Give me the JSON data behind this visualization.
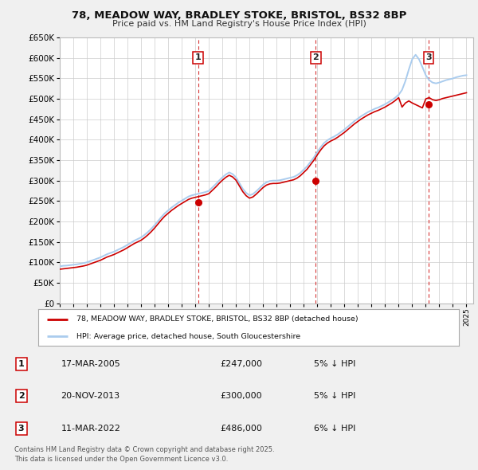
{
  "title_line1": "78, MEADOW WAY, BRADLEY STOKE, BRISTOL, BS32 8BP",
  "title_line2": "Price paid vs. HM Land Registry's House Price Index (HPI)",
  "background_color": "#f0f0f0",
  "plot_bg_color": "#ffffff",
  "grid_color": "#cccccc",
  "hpi_color": "#aaccee",
  "price_color": "#cc0000",
  "legend_label_price": "78, MEADOW WAY, BRADLEY STOKE, BRISTOL, BS32 8BP (detached house)",
  "legend_label_hpi": "HPI: Average price, detached house, South Gloucestershire",
  "ylim": [
    0,
    650000
  ],
  "ytick_step": 50000,
  "transactions": [
    {
      "num": 1,
      "date": "17-MAR-2005",
      "price": 247000,
      "pct": "5%",
      "dir": "↓",
      "x_val": 2005.21
    },
    {
      "num": 2,
      "date": "20-NOV-2013",
      "price": 300000,
      "pct": "5%",
      "dir": "↓",
      "x_val": 2013.89
    },
    {
      "num": 3,
      "date": "11-MAR-2022",
      "price": 486000,
      "pct": "6%",
      "dir": "↓",
      "x_val": 2022.21
    }
  ],
  "hpi_x": [
    1995.0,
    1995.25,
    1995.5,
    1995.75,
    1996.0,
    1996.25,
    1996.5,
    1996.75,
    1997.0,
    1997.25,
    1997.5,
    1997.75,
    1998.0,
    1998.25,
    1998.5,
    1998.75,
    1999.0,
    1999.25,
    1999.5,
    1999.75,
    2000.0,
    2000.25,
    2000.5,
    2000.75,
    2001.0,
    2001.25,
    2001.5,
    2001.75,
    2002.0,
    2002.25,
    2002.5,
    2002.75,
    2003.0,
    2003.25,
    2003.5,
    2003.75,
    2004.0,
    2004.25,
    2004.5,
    2004.75,
    2005.0,
    2005.25,
    2005.5,
    2005.75,
    2006.0,
    2006.25,
    2006.5,
    2006.75,
    2007.0,
    2007.25,
    2007.5,
    2007.75,
    2008.0,
    2008.25,
    2008.5,
    2008.75,
    2009.0,
    2009.25,
    2009.5,
    2009.75,
    2010.0,
    2010.25,
    2010.5,
    2010.75,
    2011.0,
    2011.25,
    2011.5,
    2011.75,
    2012.0,
    2012.25,
    2012.5,
    2012.75,
    2013.0,
    2013.25,
    2013.5,
    2013.75,
    2014.0,
    2014.25,
    2014.5,
    2014.75,
    2015.0,
    2015.25,
    2015.5,
    2015.75,
    2016.0,
    2016.25,
    2016.5,
    2016.75,
    2017.0,
    2017.25,
    2017.5,
    2017.75,
    2018.0,
    2018.25,
    2018.5,
    2018.75,
    2019.0,
    2019.25,
    2019.5,
    2019.75,
    2020.0,
    2020.25,
    2020.5,
    2020.75,
    2021.0,
    2021.25,
    2021.5,
    2021.75,
    2022.0,
    2022.25,
    2022.5,
    2022.75,
    2023.0,
    2023.25,
    2023.5,
    2023.75,
    2024.0,
    2024.25,
    2024.5,
    2024.75,
    2025.0
  ],
  "hpi_y": [
    90000,
    91500,
    92000,
    93000,
    94000,
    95000,
    96500,
    98000,
    100000,
    103000,
    106000,
    109000,
    112000,
    116000,
    120000,
    123000,
    126000,
    130000,
    134000,
    138000,
    143000,
    148000,
    153000,
    157000,
    161000,
    167000,
    174000,
    182000,
    191000,
    201000,
    211000,
    220000,
    227000,
    234000,
    240000,
    246000,
    251000,
    256000,
    261000,
    264000,
    266000,
    268000,
    270000,
    272000,
    275000,
    283000,
    291000,
    300000,
    308000,
    315000,
    320000,
    316000,
    308000,
    294000,
    280000,
    270000,
    264000,
    267000,
    274000,
    282000,
    290000,
    296000,
    299000,
    300000,
    300000,
    301000,
    303000,
    305000,
    307000,
    309000,
    313000,
    319000,
    327000,
    335000,
    346000,
    357000,
    370000,
    382000,
    392000,
    399000,
    404000,
    408000,
    413000,
    419000,
    425000,
    432000,
    439000,
    446000,
    452000,
    458000,
    463000,
    468000,
    472000,
    476000,
    479000,
    483000,
    487000,
    492000,
    497000,
    503000,
    510000,
    522000,
    544000,
    572000,
    597000,
    608000,
    597000,
    578000,
    558000,
    546000,
    540000,
    538000,
    540000,
    543000,
    546000,
    548000,
    550000,
    553000,
    555000,
    557000,
    558000
  ],
  "price_y": [
    83000,
    84000,
    85000,
    86000,
    87000,
    88000,
    89500,
    91000,
    93000,
    96000,
    99000,
    102000,
    105000,
    109000,
    113000,
    116000,
    119000,
    123000,
    127000,
    131000,
    136000,
    141000,
    146000,
    150000,
    154000,
    160000,
    167000,
    175000,
    184000,
    194000,
    204000,
    213000,
    220000,
    227000,
    233000,
    239000,
    244000,
    249000,
    254000,
    257000,
    259000,
    261000,
    263000,
    265000,
    268000,
    276000,
    284000,
    293000,
    301000,
    308000,
    313000,
    309000,
    301000,
    287000,
    273000,
    263000,
    257000,
    260000,
    267000,
    275000,
    283000,
    289000,
    292000,
    293000,
    293000,
    294000,
    296000,
    298000,
    300000,
    302000,
    306000,
    312000,
    320000,
    328000,
    339000,
    350000,
    363000,
    375000,
    385000,
    392000,
    397000,
    401000,
    406000,
    412000,
    418000,
    425000,
    432000,
    439000,
    445000,
    451000,
    456000,
    461000,
    465000,
    469000,
    472000,
    476000,
    480000,
    485000,
    490000,
    496000,
    503000,
    480000,
    490000,
    495000,
    490000,
    486000,
    482000,
    478000,
    500000,
    503000,
    498000,
    496000,
    498000,
    501000,
    503000,
    505000,
    507000,
    509000,
    511000,
    513000,
    515000
  ],
  "footnote": "Contains HM Land Registry data © Crown copyright and database right 2025.\nThis data is licensed under the Open Government Licence v3.0.",
  "xlim_start": 1995,
  "xlim_end": 2025.5
}
